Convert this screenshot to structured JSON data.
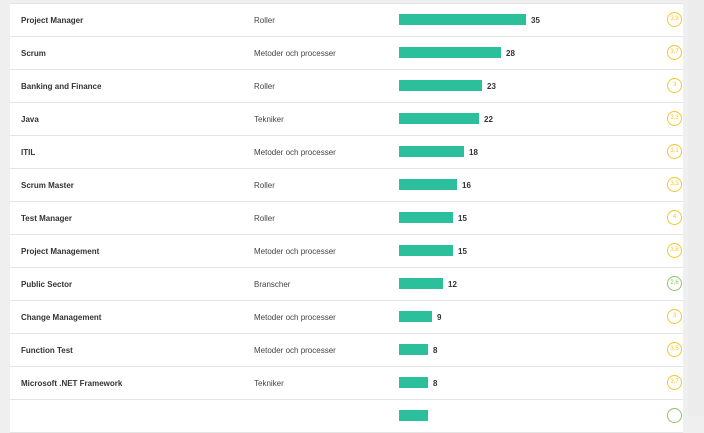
{
  "colors": {
    "bar": "#2bbf9c",
    "score_yellow": "#f2c530",
    "score_green": "#8cc46a"
  },
  "max_value": 35,
  "rows": [
    {
      "name": "Project Manager",
      "category": "Roller",
      "count": 35,
      "score": "3,9",
      "color": "yellow"
    },
    {
      "name": "Scrum",
      "category": "Metoder och processer",
      "count": 28,
      "score": "3,7",
      "color": "yellow"
    },
    {
      "name": "Banking and Finance",
      "category": "Roller",
      "count": 23,
      "score": "3",
      "color": "yellow"
    },
    {
      "name": "Java",
      "category": "Tekniker",
      "count": 22,
      "score": "3,3",
      "color": "yellow"
    },
    {
      "name": "ITIL",
      "category": "Metoder och processer",
      "count": 18,
      "score": "3,1",
      "color": "yellow"
    },
    {
      "name": "Scrum Master",
      "category": "Roller",
      "count": 16,
      "score": "3,3",
      "color": "yellow"
    },
    {
      "name": "Test Manager",
      "category": "Roller",
      "count": 15,
      "score": "4",
      "color": "yellow"
    },
    {
      "name": "Project Management",
      "category": "Metoder och processer",
      "count": 15,
      "score": "3,8",
      "color": "yellow"
    },
    {
      "name": "Public Sector",
      "category": "Branscher",
      "count": 12,
      "score": "2,6",
      "color": "green"
    },
    {
      "name": "Change Management",
      "category": "Metoder och processer",
      "count": 9,
      "score": "3",
      "color": "yellow"
    },
    {
      "name": "Function Test",
      "category": "Metoder och processer",
      "count": 8,
      "score": "3,5",
      "color": "yellow"
    },
    {
      "name": "Microsoft .NET Framework",
      "category": "Tekniker",
      "count": 8,
      "score": "3,7",
      "color": "yellow"
    }
  ]
}
